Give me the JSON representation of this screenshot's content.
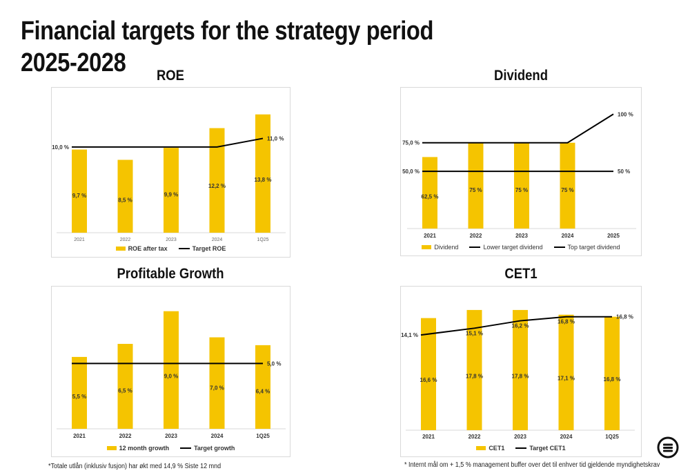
{
  "title": "Financial targets for the strategy period 2025-2028",
  "colors": {
    "bar": "#F5C400",
    "line": "#000000",
    "axis": "#d9d9d9"
  },
  "chart_data": [
    {
      "type": "bar",
      "title": "ROE",
      "categories": [
        "2021",
        "2022",
        "2023",
        "2024",
        "1Q25"
      ],
      "series": [
        {
          "name": "ROE after tax",
          "kind": "bar",
          "values": [
            9.7,
            8.5,
            9.9,
            12.2,
            13.8
          ],
          "labels": [
            "9,7 %",
            "8,5 %",
            "9,9 %",
            "12,2 %",
            "13,8 %"
          ]
        },
        {
          "name": "Target ROE",
          "kind": "line",
          "values": [
            10.0,
            10.0,
            10.0,
            10.0,
            11.0
          ],
          "labels": [
            "10,0 %",
            "",
            "",
            "",
            "11,0 %"
          ]
        }
      ],
      "ylim": [
        0,
        14.5
      ],
      "legend_position": "bottom"
    },
    {
      "type": "bar",
      "title": "Dividend",
      "categories": [
        "2021",
        "2022",
        "2023",
        "2024",
        "2025"
      ],
      "series": [
        {
          "name": "Dividend",
          "kind": "bar",
          "values": [
            62.5,
            75,
            75,
            75,
            null
          ],
          "labels": [
            "62,5 %",
            "75 %",
            "75 %",
            "75 %",
            ""
          ]
        },
        {
          "name": "Lower target dividend",
          "kind": "line",
          "values": [
            50,
            50,
            50,
            50,
            50
          ],
          "labels": [
            "50,0 %",
            "",
            "",
            "",
            "50 %"
          ]
        },
        {
          "name": "Top target dividend",
          "kind": "line",
          "values": [
            75,
            75,
            75,
            75,
            100
          ],
          "labels": [
            "75,0 %",
            "",
            "",
            "",
            "100 %"
          ]
        }
      ],
      "ylim": [
        0,
        105
      ],
      "legend_position": "bottom"
    },
    {
      "type": "bar",
      "title": "Profitable Growth",
      "categories": [
        "2021",
        "2022",
        "2023",
        "2024",
        "1Q25"
      ],
      "series": [
        {
          "name": "12 month growth",
          "kind": "bar",
          "values": [
            5.5,
            6.5,
            9.0,
            7.0,
            6.4
          ],
          "labels": [
            "5,5 %",
            "6,5 %",
            "9,0 %",
            "7,0 %",
            "6,4 %"
          ]
        },
        {
          "name": "Target growth",
          "kind": "line",
          "values": [
            5.0,
            5.0,
            5.0,
            5.0,
            5.0
          ],
          "labels": [
            "",
            "",
            "",
            "",
            "5,0 %"
          ]
        }
      ],
      "ylim": [
        0,
        9.3
      ],
      "legend_position": "bottom"
    },
    {
      "type": "bar",
      "title": "CET1",
      "categories": [
        "2021",
        "2022",
        "2023",
        "2024",
        "1Q25"
      ],
      "series": [
        {
          "name": "CET1",
          "kind": "bar",
          "values": [
            16.6,
            17.8,
            17.8,
            17.1,
            16.8
          ],
          "labels": [
            "16,6 %",
            "17,8 %",
            "17,8 %",
            "17,1 %",
            "16,8 %"
          ]
        },
        {
          "name": "Target CET1",
          "kind": "line",
          "values": [
            14.1,
            15.1,
            16.2,
            16.8,
            16.8
          ],
          "labels": [
            "14,1 %",
            "15,1 %",
            "16,2 %",
            "16,8 %",
            "16,8 %"
          ]
        }
      ],
      "ylim": [
        0,
        18.2
      ],
      "legend_position": "bottom"
    }
  ],
  "footnotes": {
    "left": "*Totale utlån (inklusiv fusjon) har økt med 14,9 % Siste 12 mnd",
    "right": "*  Internt mål om + 1,5 % management buffer over det til enhver tid gjeldende myndighetskrav"
  },
  "logo": "logo-icon"
}
